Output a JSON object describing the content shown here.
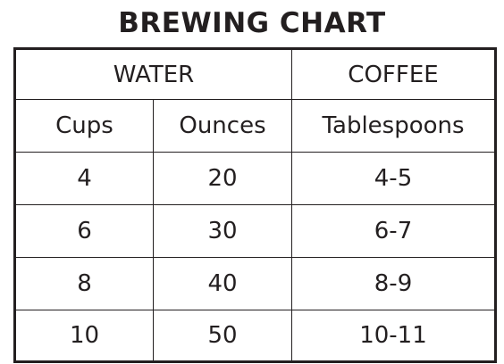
{
  "title": "BREWING CHART",
  "header_groups": {
    "water": "WATER",
    "coffee": "COFFEE"
  },
  "columns": {
    "cups": "Cups",
    "ounces": "Ounces",
    "tablespoons": "Tablespoons"
  },
  "rows": [
    {
      "cups": "4",
      "ounces": "20",
      "tablespoons": "4-5"
    },
    {
      "cups": "6",
      "ounces": "30",
      "tablespoons": "6-7"
    },
    {
      "cups": "8",
      "ounces": "40",
      "tablespoons": "8-9"
    },
    {
      "cups": "10",
      "ounces": "50",
      "tablespoons": "10-11"
    }
  ],
  "colors": {
    "text": "#231f20",
    "border": "#231f20",
    "background": "#ffffff"
  }
}
